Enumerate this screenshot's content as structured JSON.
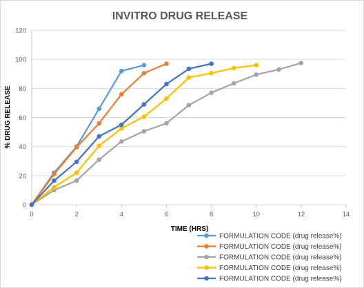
{
  "chart_data": {
    "type": "line",
    "title": "INVITRO DRUG RELEASE",
    "xlabel": "TIME  (HRS)",
    "ylabel": "% DRUG RELEASE",
    "xlim": [
      0,
      14
    ],
    "ylim": [
      0,
      120
    ],
    "xticks": [
      0,
      2,
      4,
      6,
      8,
      10,
      12,
      14
    ],
    "yticks": [
      0,
      20,
      40,
      60,
      80,
      100,
      120
    ],
    "grid": "horizontal",
    "legend_position": "bottom-right",
    "series": [
      {
        "name": "FORMULATION CODE (drug release%)",
        "color": "#5B9BD5",
        "x": [
          0,
          1,
          2,
          3,
          4,
          5
        ],
        "y": [
          0,
          22,
          40,
          66,
          92,
          96
        ]
      },
      {
        "name": "FORMULATION CODE (drug release%)",
        "color": "#ED7D31",
        "x": [
          0,
          1,
          2,
          3,
          4,
          5,
          6
        ],
        "y": [
          0,
          21,
          39.5,
          56,
          76,
          90.5,
          97
        ]
      },
      {
        "name": "FORMULATION CODE (drug release%)",
        "color": "#A5A5A5",
        "x": [
          0,
          1,
          2,
          3,
          4,
          5,
          6,
          7,
          8,
          9,
          10,
          11,
          12
        ],
        "y": [
          0,
          10,
          16.5,
          31,
          43.5,
          50.5,
          56,
          68.5,
          77,
          83.5,
          89.5,
          93,
          97.5
        ]
      },
      {
        "name": "FORMULATION CODE (drug release%)",
        "color": "#FFC000",
        "x": [
          0,
          1,
          2,
          3,
          4,
          5,
          6,
          7,
          8,
          9,
          10
        ],
        "y": [
          0,
          12,
          22,
          40.5,
          52.5,
          60.5,
          73,
          87.5,
          90.5,
          94,
          96
        ]
      },
      {
        "name": "FORMULATION CODE (drug release%)",
        "color": "#4472C4",
        "x": [
          0,
          1,
          2,
          3,
          4,
          5,
          6,
          7,
          8
        ],
        "y": [
          0,
          16.5,
          29.5,
          47,
          55,
          69,
          83,
          93.5,
          97
        ]
      }
    ]
  }
}
